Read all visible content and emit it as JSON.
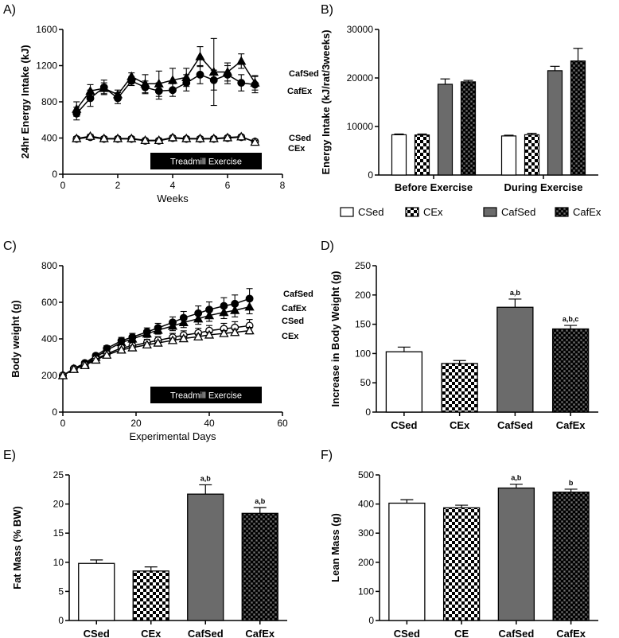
{
  "colors": {
    "csed": "#ffffff",
    "cex_pattern": "checker",
    "cafsed": "#6b6b6b",
    "cafex_pattern": "dark-checker",
    "axis": "#000000"
  },
  "chart_data": [
    {
      "panel": "A)",
      "type": "line",
      "title": "",
      "xlabel": "Weeks",
      "ylabel": "24hr Energy Intake (kJ)",
      "xlim": [
        0,
        8
      ],
      "ylim": [
        0,
        1600
      ],
      "xticks": [
        0,
        2,
        4,
        6,
        8
      ],
      "yticks": [
        0,
        400,
        800,
        1200,
        1600
      ],
      "annotation": "Treadmill Exercise",
      "x": [
        0.5,
        1,
        1.5,
        2,
        2.5,
        3,
        3.5,
        4,
        4.5,
        5,
        5.5,
        6,
        6.5,
        7
      ],
      "series": [
        {
          "name": "CafSed",
          "marker": "triangle",
          "values": [
            720,
            920,
            950,
            880,
            1080,
            1000,
            1000,
            1040,
            1070,
            1300,
            1130,
            1130,
            1250,
            1010
          ],
          "errors": [
            80,
            70,
            60,
            50,
            40,
            100,
            140,
            130,
            100,
            110,
            370,
            100,
            80,
            80
          ]
        },
        {
          "name": "CafEx",
          "marker": "circle",
          "values": [
            670,
            840,
            960,
            840,
            1030,
            960,
            920,
            930,
            1010,
            1100,
            1040,
            1100,
            1010,
            990
          ],
          "errors": [
            70,
            90,
            80,
            60,
            50,
            70,
            90,
            70,
            90,
            100,
            110,
            100,
            90,
            90
          ]
        },
        {
          "name": "CSed",
          "marker": "circle-open",
          "values": [
            390,
            410,
            390,
            390,
            390,
            370,
            370,
            400,
            390,
            390,
            390,
            400,
            410,
            360
          ],
          "errors": [
            25,
            25,
            20,
            20,
            20,
            25,
            25,
            20,
            20,
            20,
            20,
            20,
            25,
            25
          ]
        },
        {
          "name": "CEx",
          "marker": "triangle-open",
          "values": [
            395,
            420,
            395,
            395,
            395,
            375,
            375,
            405,
            395,
            395,
            395,
            405,
            415,
            355
          ],
          "errors": [
            20,
            20,
            20,
            20,
            20,
            20,
            20,
            20,
            20,
            20,
            20,
            20,
            20,
            20
          ]
        }
      ]
    },
    {
      "panel": "B)",
      "type": "bar",
      "title": "",
      "xlabel": "",
      "ylabel": "Energy Intake (kJ/rat/3weeks)",
      "ylim": [
        0,
        30000
      ],
      "yticks": [
        0,
        10000,
        20000,
        30000
      ],
      "categories": [
        "Before Exercise",
        "During Exercise"
      ],
      "series": [
        {
          "name": "CSed",
          "values": [
            8300,
            8050
          ],
          "errors": [
            150,
            150
          ]
        },
        {
          "name": "CEx",
          "values": [
            8250,
            8300
          ],
          "errors": [
            200,
            300
          ]
        },
        {
          "name": "CafSed",
          "values": [
            18700,
            21500
          ],
          "errors": [
            1100,
            900
          ]
        },
        {
          "name": "CafEx",
          "values": [
            19200,
            23500
          ],
          "errors": [
            300,
            2600
          ]
        }
      ],
      "legend": [
        "CSed",
        "CEx",
        "CafSed",
        "CafEx"
      ]
    },
    {
      "panel": "C)",
      "type": "line",
      "title": "",
      "xlabel": "Experimental Days",
      "ylabel": "Body weight (g)",
      "xlim": [
        0,
        60
      ],
      "ylim": [
        0,
        800
      ],
      "xticks": [
        0,
        20,
        40,
        60
      ],
      "yticks": [
        0,
        200,
        400,
        600,
        800
      ],
      "annotation": "Treadmill Exercise",
      "x": [
        0,
        3,
        6,
        9,
        12,
        16,
        19,
        23,
        26,
        30,
        33,
        37,
        40,
        44,
        47,
        51
      ],
      "series": [
        {
          "name": "CafSed",
          "marker": "circle",
          "values": [
            200,
            238,
            268,
            308,
            348,
            390,
            410,
            438,
            460,
            490,
            515,
            540,
            560,
            580,
            592,
            620
          ],
          "errors": [
            5,
            8,
            10,
            12,
            15,
            18,
            20,
            22,
            25,
            30,
            35,
            40,
            42,
            45,
            48,
            55
          ]
        },
        {
          "name": "CafEx",
          "marker": "triangle",
          "values": [
            200,
            236,
            262,
            300,
            338,
            380,
            400,
            428,
            448,
            470,
            490,
            510,
            528,
            545,
            556,
            575
          ],
          "errors": [
            5,
            8,
            10,
            12,
            14,
            16,
            18,
            20,
            22,
            25,
            28,
            30,
            32,
            34,
            36,
            38
          ]
        },
        {
          "name": "CSed",
          "marker": "circle-open",
          "values": [
            200,
            235,
            258,
            290,
            318,
            350,
            362,
            380,
            392,
            408,
            420,
            432,
            445,
            455,
            462,
            472
          ],
          "errors": [
            5,
            7,
            8,
            10,
            12,
            14,
            16,
            18,
            20,
            22,
            24,
            26,
            28,
            30,
            32,
            34
          ]
        },
        {
          "name": "CEx",
          "marker": "triangle-open",
          "values": [
            200,
            234,
            255,
            285,
            312,
            340,
            352,
            368,
            378,
            392,
            402,
            412,
            422,
            430,
            436,
            445
          ],
          "errors": [
            5,
            6,
            7,
            8,
            9,
            10,
            10,
            11,
            12,
            12,
            13,
            14,
            15,
            16,
            17,
            18
          ]
        }
      ]
    },
    {
      "panel": "D)",
      "type": "bar",
      "title": "",
      "xlabel": "",
      "ylabel": "Increase in Body Weight (g)",
      "ylim": [
        0,
        250
      ],
      "yticks": [
        0,
        50,
        100,
        150,
        200,
        250
      ],
      "categories": [
        "CSed",
        "CEx",
        "CafSed",
        "CafEx"
      ],
      "values": [
        103,
        83,
        179,
        142
      ],
      "errors": [
        8,
        5,
        14,
        6
      ],
      "annotations": [
        "",
        "",
        "a,b",
        "a,b,c"
      ]
    },
    {
      "panel": "E)",
      "type": "bar",
      "title": "",
      "xlabel": "",
      "ylabel": "Fat Mass (% BW)",
      "ylim": [
        0,
        25
      ],
      "yticks": [
        0,
        5,
        10,
        15,
        20,
        25
      ],
      "categories": [
        "CSed",
        "CEx",
        "CafSed",
        "CafEx"
      ],
      "values": [
        9.8,
        8.5,
        21.7,
        18.4
      ],
      "errors": [
        0.6,
        0.7,
        1.6,
        1.0
      ],
      "annotations": [
        "",
        "",
        "a,b",
        "a,b"
      ]
    },
    {
      "panel": "F)",
      "type": "bar",
      "title": "",
      "xlabel": "",
      "ylabel": "Lean Mass (g)",
      "ylim": [
        0,
        500
      ],
      "yticks": [
        0,
        100,
        200,
        300,
        400,
        500
      ],
      "categories": [
        "CSed",
        "CE",
        "CafSed",
        "CafEx"
      ],
      "values": [
        403,
        387,
        455,
        441
      ],
      "errors": [
        12,
        9,
        13,
        10
      ],
      "annotations": [
        "",
        "",
        "a,b",
        "b"
      ]
    }
  ]
}
